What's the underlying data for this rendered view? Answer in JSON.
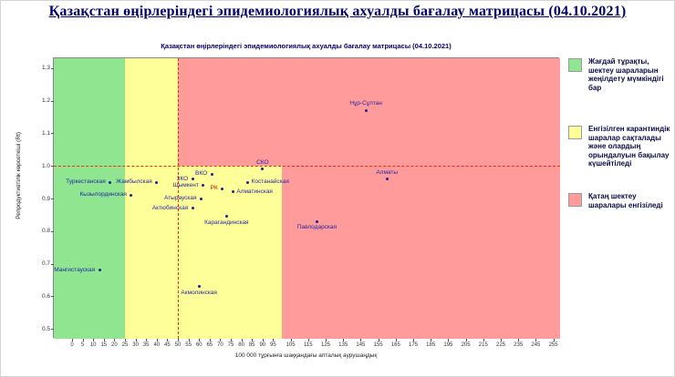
{
  "header": {
    "title": "Қазақстан өңірлеріндегі эпидемиологиялық ахуалды бағалау матрицасы  (04.10.2021)"
  },
  "legend": {
    "items": [
      {
        "color": "#90e690",
        "text": "Жағдай тұрақты, шектеу шараларын жеңілдету мүмкіндігі бар"
      },
      {
        "color": "#ffff99",
        "text": "Енгізілген карантиндік шаралар сақталады және олардың орындалуын бақылау күшейтіледі"
      },
      {
        "color": "#ff9b9b",
        "text": "Қатаң шектеу шаралары енгізіледі"
      }
    ]
  },
  "chart_data": {
    "type": "scatter",
    "title": "Қазақстан өңірлеріндегі эпидемиологиялық ахуалды бағалау матрицасы (04.10.2021)",
    "xlabel": "100 000 тұрғынға шаққандағы апталық аурушаңдық",
    "ylabel": "Репродуктивтілік көрсеткіші (Rt)",
    "x_ticks": [
      0,
      5,
      10,
      15,
      20,
      25,
      30,
      35,
      40,
      45,
      50,
      55,
      60,
      65,
      70,
      75,
      80,
      85,
      90,
      95,
      105,
      115,
      125,
      135,
      145,
      155,
      165,
      175,
      185,
      195,
      205,
      215,
      225,
      235,
      245,
      255
    ],
    "x_scale_note": "axis step 5 from 0 to 95, step 10 from 105 to 255",
    "y_ticks": [
      "0.5",
      "0.6",
      "0.7",
      "0.8",
      "0.9",
      "1.0",
      "1.1",
      "1.2",
      "1.3"
    ],
    "ylim": [
      0.47,
      1.33
    ],
    "grid": false,
    "legend_position": "right",
    "zone_colors": {
      "green": "#90e690",
      "yellow": "#ffff99",
      "red": "#ff9b9b"
    },
    "zones": [
      {
        "name": "stable-green",
        "x0": null,
        "x1": 25,
        "rt0": null,
        "rt1": null,
        "color": "#90e690"
      },
      {
        "name": "caution-yellow-band",
        "x0": 25,
        "x1": 50,
        "rt0": null,
        "rt1": null,
        "color": "#ffff99"
      },
      {
        "name": "caution-yellow-low",
        "x0": 50,
        "x1": 100,
        "rt0": null,
        "rt1": 1.0,
        "color": "#ffff99"
      },
      {
        "name": "critical-red-top",
        "x0": 50,
        "x1": null,
        "rt0": 1.0,
        "rt1": null,
        "color": "#ff9b9b"
      },
      {
        "name": "critical-red-right",
        "x0": 100,
        "x1": null,
        "rt0": null,
        "rt1": 1.0,
        "color": "#ff9b9b"
      }
    ],
    "thresholds": [
      {
        "axis": "x",
        "value": 50
      },
      {
        "axis": "y",
        "value": 1.0
      }
    ],
    "points": [
      {
        "label": "Туркестанская",
        "x": 18,
        "rt": 0.95,
        "anchor": "left"
      },
      {
        "label": "Жамбылская",
        "x": 40,
        "rt": 0.95,
        "anchor": "left"
      },
      {
        "label": "Кызылординская",
        "x": 28,
        "rt": 0.91,
        "anchor": "left"
      },
      {
        "label": "Мангистауская",
        "x": 13,
        "rt": 0.68,
        "anchor": "left"
      },
      {
        "label": "ЗКО",
        "x": 57,
        "rt": 0.96,
        "anchor": "left"
      },
      {
        "label": "ВКО",
        "x": 66,
        "rt": 0.975,
        "anchor": "left"
      },
      {
        "label": "Шымкент",
        "x": 62,
        "rt": 0.94,
        "anchor": "left"
      },
      {
        "label": "РК",
        "x": 71,
        "rt": 0.93,
        "anchor": "left",
        "color": "#cc0000"
      },
      {
        "label": "Костанайская",
        "x": 83,
        "rt": 0.95,
        "anchor": "right"
      },
      {
        "label": "СКО",
        "x": 90,
        "rt": 0.99,
        "anchor": "above"
      },
      {
        "label": "Алматинская",
        "x": 76,
        "rt": 0.92,
        "anchor": "right"
      },
      {
        "label": "Атырауская",
        "x": 61,
        "rt": 0.9,
        "anchor": "left"
      },
      {
        "label": "Актюбинская",
        "x": 57,
        "rt": 0.87,
        "anchor": "left"
      },
      {
        "label": "Карагандинская",
        "x": 73,
        "rt": 0.845,
        "anchor": "below"
      },
      {
        "label": "Акмолинская",
        "x": 60,
        "rt": 0.63,
        "anchor": "below"
      },
      {
        "label": "Нұр-Сұлтан",
        "x": 148,
        "rt": 1.17,
        "anchor": "above"
      },
      {
        "label": "Алматы",
        "x": 160,
        "rt": 0.96,
        "anchor": "above"
      },
      {
        "label": "Павлодарская",
        "x": 120,
        "rt": 0.83,
        "anchor": "below"
      }
    ]
  }
}
